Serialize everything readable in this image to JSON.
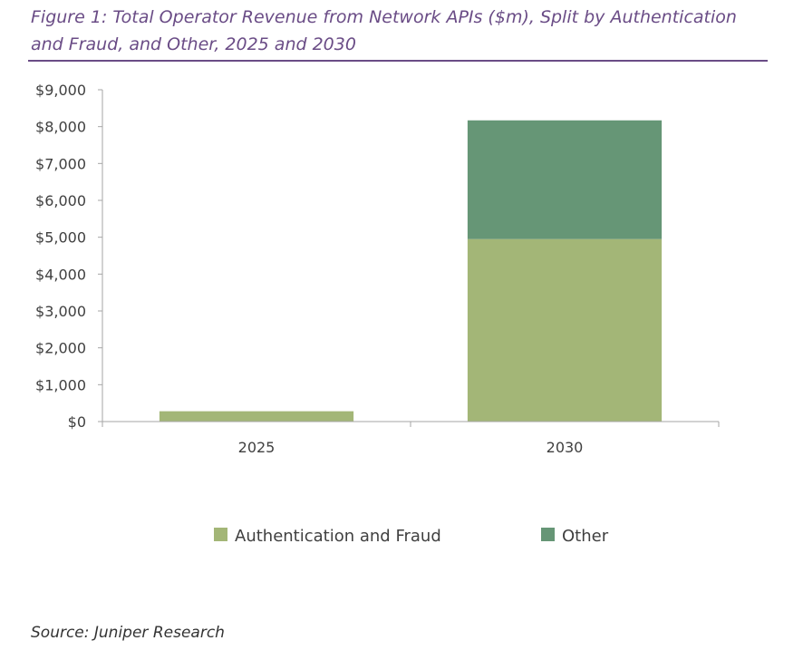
{
  "figure": {
    "title": "Figure 1: Total Operator Revenue from Network APIs ($m), Split by Authentication and Fraud, and Other, 2025 and 2030",
    "source": "Source: Juniper Research"
  },
  "chart_data": {
    "type": "bar",
    "stacked": true,
    "categories": [
      "2025",
      "2030"
    ],
    "series": [
      {
        "name": "Authentication and Fraud",
        "values": [
          280,
          4950
        ],
        "color": "#a3b677"
      },
      {
        "name": "Other",
        "values": [
          0,
          3220
        ],
        "color": "#669676"
      }
    ],
    "ylim": [
      0,
      9000
    ],
    "yticks": [
      0,
      1000,
      2000,
      3000,
      4000,
      5000,
      6000,
      7000,
      8000,
      9000
    ],
    "ytick_labels": [
      "$0",
      "$1,000",
      "$2,000",
      "$3,000",
      "$4,000",
      "$5,000",
      "$6,000",
      "$7,000",
      "$8,000",
      "$9,000"
    ],
    "xlabel": "",
    "ylabel": "",
    "grid": false,
    "legend_position": "bottom",
    "axis_color": "#a6a6a6"
  }
}
